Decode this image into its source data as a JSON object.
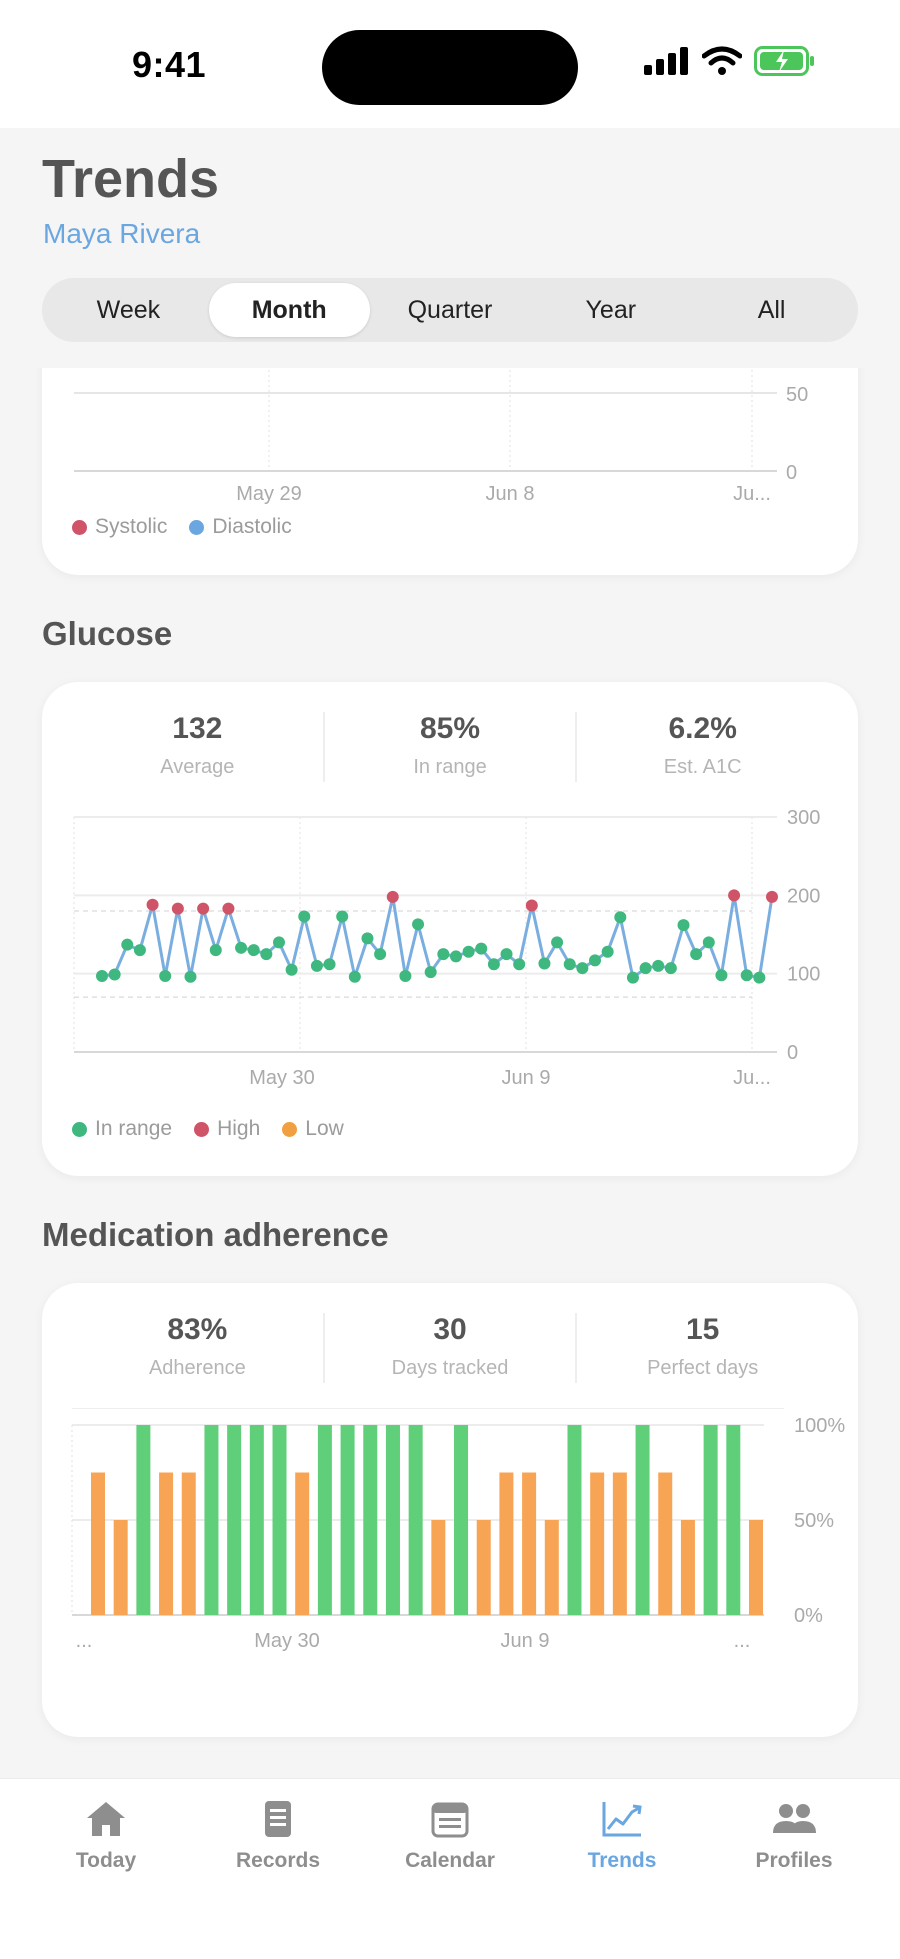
{
  "status": {
    "time": "9:41"
  },
  "header": {
    "title": "Trends",
    "profile": "Maya Rivera"
  },
  "periods": [
    {
      "label": "Week",
      "active": false
    },
    {
      "label": "Month",
      "active": true
    },
    {
      "label": "Quarter",
      "active": false
    },
    {
      "label": "Year",
      "active": false
    },
    {
      "label": "All",
      "active": false
    }
  ],
  "blood_pressure": {
    "y_ticks": [
      "50",
      "0"
    ],
    "x_ticks": [
      "May 29",
      "Jun 8",
      "Ju..."
    ],
    "legend": [
      {
        "label": "Systolic",
        "color": "#d05468"
      },
      {
        "label": "Diastolic",
        "color": "#6aa6e0"
      }
    ]
  },
  "glucose": {
    "title": "Glucose",
    "stats": [
      {
        "value": "132",
        "label": "Average"
      },
      {
        "value": "85%",
        "label": "In range"
      },
      {
        "value": "6.2%",
        "label": "Est. A1C"
      }
    ],
    "legend": [
      {
        "label": "In range",
        "color": "#3fb87f"
      },
      {
        "label": "High",
        "color": "#d05468"
      },
      {
        "label": "Low",
        "color": "#f0a040"
      }
    ]
  },
  "medication": {
    "title": "Medication adherence",
    "stats": [
      {
        "value": "83%",
        "label": "Adherence"
      },
      {
        "value": "30",
        "label": "Days tracked"
      },
      {
        "value": "15",
        "label": "Perfect days"
      }
    ]
  },
  "chart_data": [
    {
      "type": "line",
      "title": "Glucose",
      "x_tick_labels": [
        "May 30",
        "Jun 9",
        "Ju..."
      ],
      "y_ticks": [
        300,
        200,
        100,
        0
      ],
      "ylim": [
        0,
        300
      ],
      "target_range": [
        70,
        180
      ],
      "series": [
        {
          "name": "Glucose",
          "color": "#7aaee0",
          "values": [
            97,
            99,
            137,
            130,
            188,
            97,
            183,
            96,
            183,
            130,
            183,
            133,
            130,
            125,
            140,
            105,
            173,
            110,
            112,
            173,
            96,
            145,
            125,
            198,
            97,
            163,
            102,
            125,
            122,
            128,
            132,
            112,
            125,
            112,
            187,
            113,
            140,
            112,
            107,
            117,
            128,
            172,
            95,
            107,
            110,
            107,
            162,
            125,
            140,
            98,
            200,
            98,
            95,
            198
          ]
        }
      ],
      "point_colors": {
        "in_range": "#3fb87f",
        "high": "#d05468",
        "low": "#f0a040"
      },
      "high_threshold": 180,
      "grid": true,
      "legend": "bottom-left"
    },
    {
      "type": "bar",
      "title": "Medication adherence",
      "x_tick_labels": [
        "...",
        "May 30",
        "Jun 9",
        "..."
      ],
      "y_ticks": [
        "100%",
        "50%",
        "0%"
      ],
      "ylim": [
        0,
        100
      ],
      "values": [
        75,
        50,
        100,
        75,
        75,
        100,
        100,
        100,
        100,
        75,
        100,
        100,
        100,
        100,
        100,
        50,
        100,
        50,
        75,
        75,
        50,
        100,
        75,
        75,
        100,
        75,
        50,
        100,
        100,
        50
      ],
      "colors": {
        "full": "#5fcf7a",
        "partial": "#f7a455"
      },
      "grid": true
    }
  ],
  "tabs": [
    {
      "label": "Today",
      "icon": "house-icon"
    },
    {
      "label": "Records",
      "icon": "document-icon"
    },
    {
      "label": "Calendar",
      "icon": "calendar-icon"
    },
    {
      "label": "Trends",
      "icon": "chart-icon",
      "active": true
    },
    {
      "label": "Profiles",
      "icon": "people-icon"
    }
  ]
}
